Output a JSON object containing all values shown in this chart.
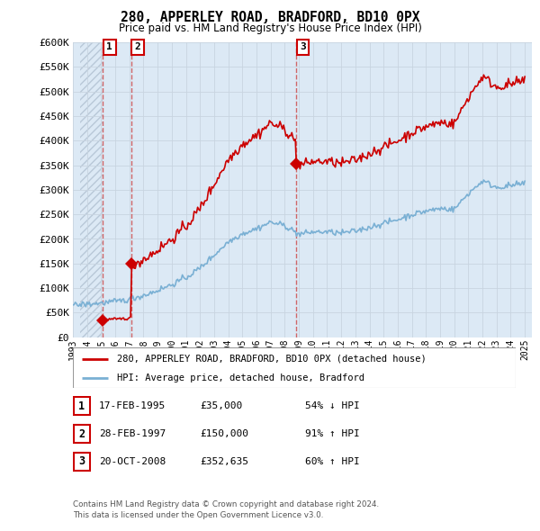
{
  "title": "280, APPERLEY ROAD, BRADFORD, BD10 0PX",
  "subtitle": "Price paid vs. HM Land Registry's House Price Index (HPI)",
  "property_label": "280, APPERLEY ROAD, BRADFORD, BD10 0PX (detached house)",
  "hpi_label": "HPI: Average price, detached house, Bradford",
  "footer1": "Contains HM Land Registry data © Crown copyright and database right 2024.",
  "footer2": "This data is licensed under the Open Government Licence v3.0.",
  "transactions": [
    {
      "num": 1,
      "date": "17-FEB-1995",
      "price": 35000,
      "pct": "54% ↓ HPI",
      "year": 1995.12
    },
    {
      "num": 2,
      "date": "28-FEB-1997",
      "price": 150000,
      "pct": "91% ↑ HPI",
      "year": 1997.12
    },
    {
      "num": 3,
      "date": "20-OCT-2008",
      "price": 352635,
      "pct": "60% ↑ HPI",
      "year": 2008.79
    }
  ],
  "property_color": "#cc0000",
  "hpi_color": "#7ab0d4",
  "bg_color": "#dce9f5",
  "hatch_color": "#b8c8d8",
  "grid_color": "#c8d4e0",
  "ylim": [
    0,
    600000
  ],
  "xlim_year_start": 1993.5,
  "xlim_year_end": 2025.5,
  "ylabel_values": [
    0,
    50000,
    100000,
    150000,
    200000,
    250000,
    300000,
    350000,
    400000,
    450000,
    500000,
    550000,
    600000
  ],
  "xtick_years": [
    1993,
    1994,
    1995,
    1996,
    1997,
    1998,
    1999,
    2000,
    2001,
    2002,
    2003,
    2004,
    2005,
    2006,
    2007,
    2008,
    2009,
    2010,
    2011,
    2012,
    2013,
    2014,
    2015,
    2016,
    2017,
    2018,
    2019,
    2020,
    2021,
    2022,
    2023,
    2024,
    2025
  ]
}
